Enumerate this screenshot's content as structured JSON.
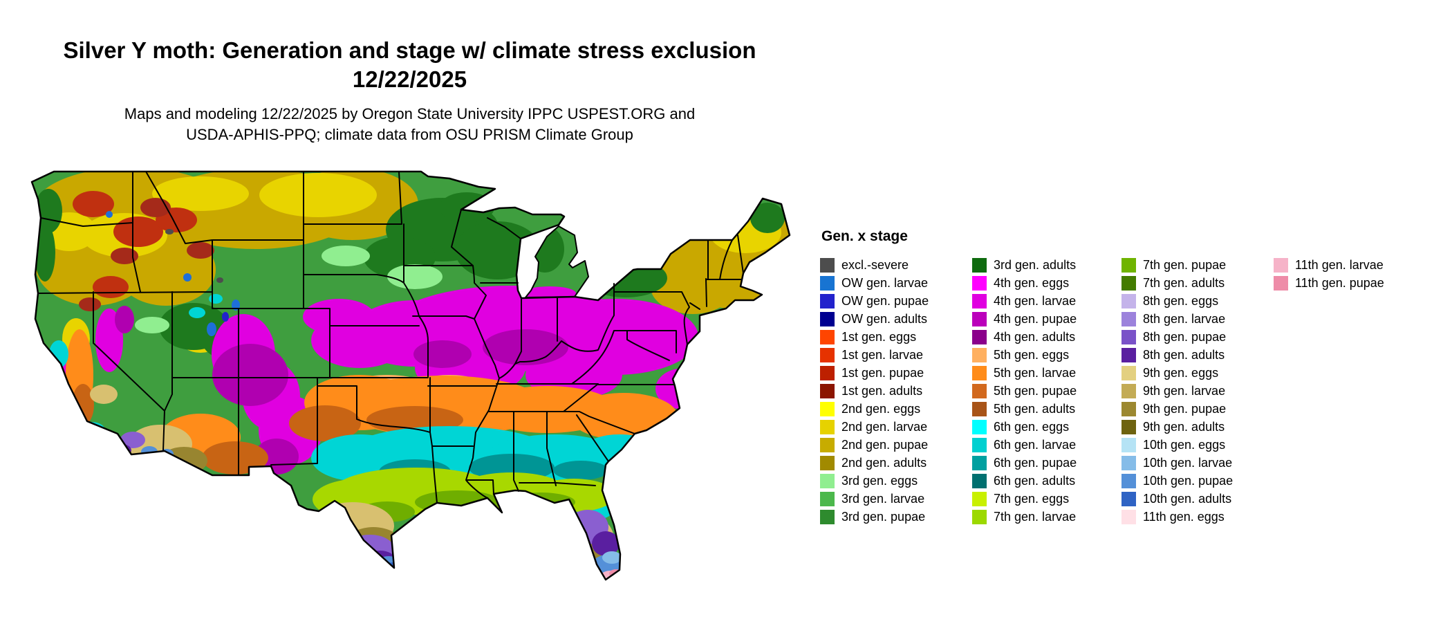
{
  "title": {
    "line1": "Silver Y moth: Generation and stage w/ climate stress exclusion",
    "line2": "12/22/2025"
  },
  "subtitle": {
    "line1": "Maps and modeling 12/22/2025 by Oregon State University IPPC USPEST.ORG and",
    "line2": "USDA-APHIS-PPQ; climate data from OSU PRISM Climate Group"
  },
  "legend": {
    "title": "Gen. x stage",
    "columns": [
      [
        {
          "label": "excl.-severe",
          "color": "#4d4d4d"
        },
        {
          "label": "OW gen. larvae",
          "color": "#1874d2"
        },
        {
          "label": "OW gen. pupae",
          "color": "#2222cc"
        },
        {
          "label": "OW gen. adults",
          "color": "#000090"
        },
        {
          "label": "1st gen. eggs",
          "color": "#ff4500"
        },
        {
          "label": "1st gen. larvae",
          "color": "#e63200"
        },
        {
          "label": "1st gen. pupae",
          "color": "#bd2000"
        },
        {
          "label": "1st gen. adults",
          "color": "#8b1500"
        },
        {
          "label": "2nd gen. eggs",
          "color": "#ffff00"
        },
        {
          "label": "2nd gen. larvae",
          "color": "#e6d200"
        },
        {
          "label": "2nd gen. pupae",
          "color": "#c7ac00"
        },
        {
          "label": "2nd gen. adults",
          "color": "#a18a00"
        },
        {
          "label": "3rd gen. eggs",
          "color": "#90ee90"
        },
        {
          "label": "3rd gen. larvae",
          "color": "#4cb84c"
        },
        {
          "label": "3rd gen. pupae",
          "color": "#2e8b2e"
        }
      ],
      [
        {
          "label": "3rd gen. adults",
          "color": "#0f6b0f"
        },
        {
          "label": "4th gen. eggs",
          "color": "#ff00ff"
        },
        {
          "label": "4th gen. larvae",
          "color": "#e000e0"
        },
        {
          "label": "4th gen. pupae",
          "color": "#bb00bb"
        },
        {
          "label": "4th gen. adults",
          "color": "#8b008b"
        },
        {
          "label": "5th gen. eggs",
          "color": "#ffb060"
        },
        {
          "label": "5th gen. larvae",
          "color": "#ff8c1a"
        },
        {
          "label": "5th gen. pupae",
          "color": "#d2691e"
        },
        {
          "label": "5th gen. adults",
          "color": "#a85418"
        },
        {
          "label": "6th gen. eggs",
          "color": "#00ffff"
        },
        {
          "label": "6th gen. larvae",
          "color": "#00d0d0"
        },
        {
          "label": "6th gen. pupae",
          "color": "#00a0a0"
        },
        {
          "label": "6th gen. adults",
          "color": "#007070"
        },
        {
          "label": "7th gen. eggs",
          "color": "#c8f000"
        },
        {
          "label": "7th gen. larvae",
          "color": "#9cd900"
        }
      ],
      [
        {
          "label": "7th gen. pupae",
          "color": "#6fb400"
        },
        {
          "label": "7th gen. adults",
          "color": "#437c00"
        },
        {
          "label": "8th gen. eggs",
          "color": "#c4b3ea"
        },
        {
          "label": "8th gen. larvae",
          "color": "#9c82dc"
        },
        {
          "label": "8th gen. pupae",
          "color": "#7a52c8"
        },
        {
          "label": "8th gen. adults",
          "color": "#5a1fa0"
        },
        {
          "label": "9th gen. eggs",
          "color": "#e3d080"
        },
        {
          "label": "9th gen. larvae",
          "color": "#c3ab55"
        },
        {
          "label": "9th gen. pupae",
          "color": "#9c8830"
        },
        {
          "label": "9th gen. adults",
          "color": "#6e6310"
        },
        {
          "label": "10th gen. eggs",
          "color": "#b5e3f5"
        },
        {
          "label": "10th gen. larvae",
          "color": "#85bce8"
        },
        {
          "label": "10th gen. pupae",
          "color": "#5490d8"
        },
        {
          "label": "10th gen. adults",
          "color": "#2f63c4"
        },
        {
          "label": "11th gen. eggs",
          "color": "#ffe0e6"
        }
      ],
      [
        {
          "label": "11th gen. larvae",
          "color": "#f6b3c8"
        },
        {
          "label": "11th gen. pupae",
          "color": "#ee8ca8"
        }
      ]
    ]
  }
}
